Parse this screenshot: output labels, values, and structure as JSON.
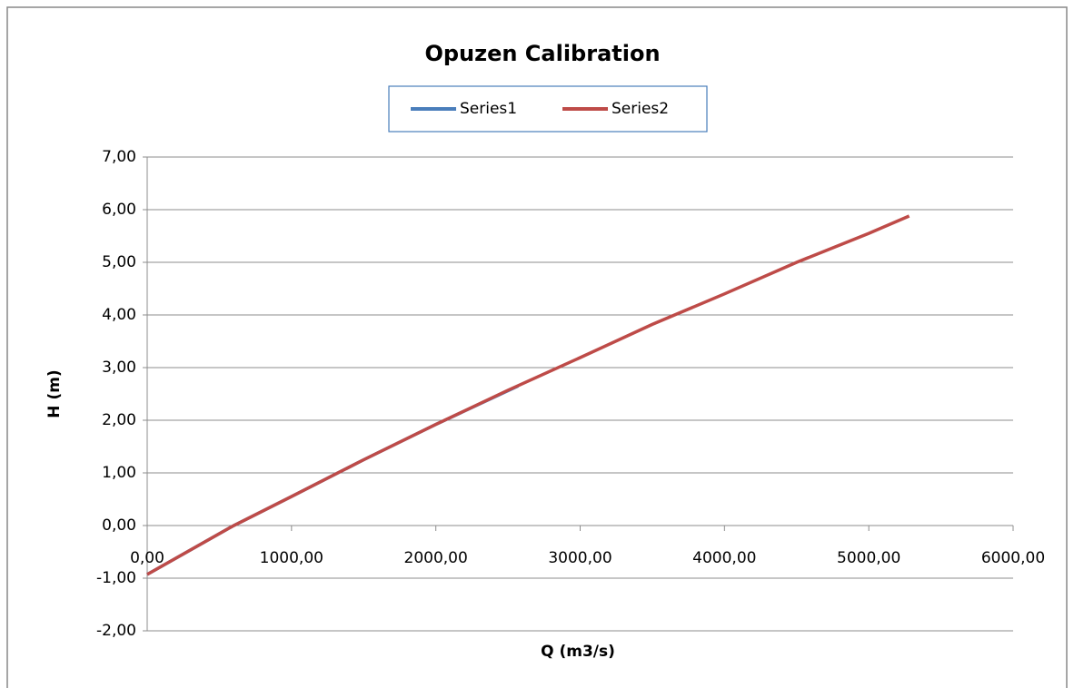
{
  "chart_data": {
    "type": "line",
    "title": "Opuzen Calibration",
    "xlabel": "Q (m3/s)",
    "ylabel": "H (m)",
    "series": [
      {
        "name": "Series1",
        "color": "#4a7ebb",
        "x": [
          0,
          600,
          1000,
          1500,
          2000,
          2570
        ],
        "values": [
          -0.93,
          0.0,
          0.55,
          1.25,
          1.92,
          2.65
        ]
      },
      {
        "name": "Series2",
        "color": "#be4b48",
        "x": [
          0,
          600,
          1000,
          1500,
          2000,
          2500,
          3000,
          3500,
          4000,
          4500,
          5000,
          5280
        ],
        "values": [
          -0.93,
          0.0,
          0.55,
          1.25,
          1.92,
          2.57,
          3.19,
          3.82,
          4.4,
          5.0,
          5.55,
          5.88
        ]
      }
    ],
    "xlim": [
      0,
      6000
    ],
    "xticks": [
      {
        "value": 0,
        "label": "0,00"
      },
      {
        "value": 1000,
        "label": "1000,00"
      },
      {
        "value": 2000,
        "label": "2000,00"
      },
      {
        "value": 3000,
        "label": "3000,00"
      },
      {
        "value": 4000,
        "label": "4000,00"
      },
      {
        "value": 5000,
        "label": "5000,00"
      },
      {
        "value": 6000,
        "label": "6000,00"
      }
    ],
    "ylim": [
      -2,
      7
    ],
    "yticks": [
      {
        "value": -2,
        "label": "-2,00"
      },
      {
        "value": -1,
        "label": "-1,00"
      },
      {
        "value": 0,
        "label": "0,00"
      },
      {
        "value": 1,
        "label": "1,00"
      },
      {
        "value": 2,
        "label": "2,00"
      },
      {
        "value": 3,
        "label": "3,00"
      },
      {
        "value": 4,
        "label": "4,00"
      },
      {
        "value": 5,
        "label": "5,00"
      },
      {
        "value": 6,
        "label": "6,00"
      },
      {
        "value": 7,
        "label": "7,00"
      }
    ],
    "grid": true,
    "legend": "top"
  }
}
